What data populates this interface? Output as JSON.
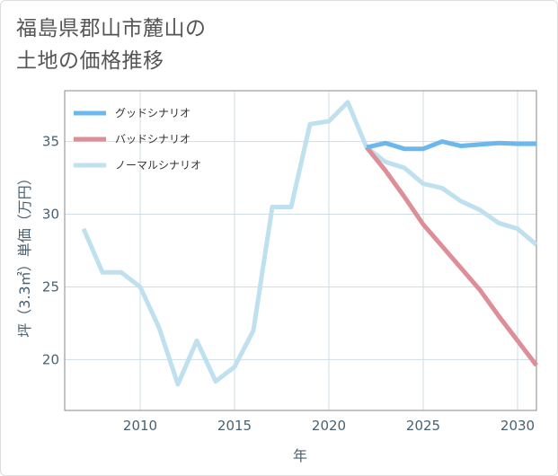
{
  "title": {
    "line1": "福島県郡山市麓山の",
    "line2": "土地の価格推移"
  },
  "colors": {
    "good": "#6cb8ec",
    "bad": "#dd8e97",
    "normal": "#bfe0ee",
    "grid": "#cfdde6",
    "axis_text": "#4a6070"
  },
  "chart_data": {
    "type": "line",
    "title": "福島県郡山市麓山の土地の価格推移",
    "xlabel": "年",
    "ylabel": "坪（3.3㎡）単価（万円）",
    "xlim": [
      2006,
      2031
    ],
    "ylim": [
      16.5,
      38.5
    ],
    "xticks": [
      2010,
      2015,
      2020,
      2025,
      2030
    ],
    "yticks": [
      20,
      25,
      30,
      35
    ],
    "grid": true,
    "legend_position": "top-left",
    "series": [
      {
        "name": "グッドシナリオ",
        "color": "#6cb8ec",
        "x": [
          2022,
          2023,
          2024,
          2025,
          2026,
          2027,
          2028,
          2029,
          2030,
          2031
        ],
        "y": [
          34.6,
          34.9,
          34.5,
          34.5,
          35.0,
          34.7,
          34.8,
          34.9,
          34.85,
          34.85
        ]
      },
      {
        "name": "バッドシナリオ",
        "color": "#dd8e97",
        "x": [
          2022,
          2023,
          2024,
          2025,
          2026,
          2027,
          2028,
          2029,
          2030,
          2031
        ],
        "y": [
          34.6,
          33.0,
          31.2,
          29.3,
          27.8,
          26.3,
          24.8,
          23.0,
          21.3,
          19.6
        ]
      },
      {
        "name": "ノーマルシナリオ",
        "color": "#bfe0ee",
        "x": [
          2007,
          2008,
          2009,
          2010,
          2011,
          2012,
          2013,
          2014,
          2015,
          2016,
          2017,
          2018,
          2019,
          2020,
          2021,
          2022,
          2023,
          2024,
          2025,
          2026,
          2027,
          2028,
          2029,
          2030,
          2031
        ],
        "y": [
          29.0,
          26.0,
          26.0,
          25.0,
          22.2,
          18.3,
          21.3,
          18.5,
          19.5,
          22.0,
          30.5,
          30.5,
          36.2,
          36.4,
          37.7,
          34.6,
          33.6,
          33.2,
          32.1,
          31.8,
          30.9,
          30.3,
          29.4,
          29.0,
          27.9
        ]
      }
    ]
  }
}
